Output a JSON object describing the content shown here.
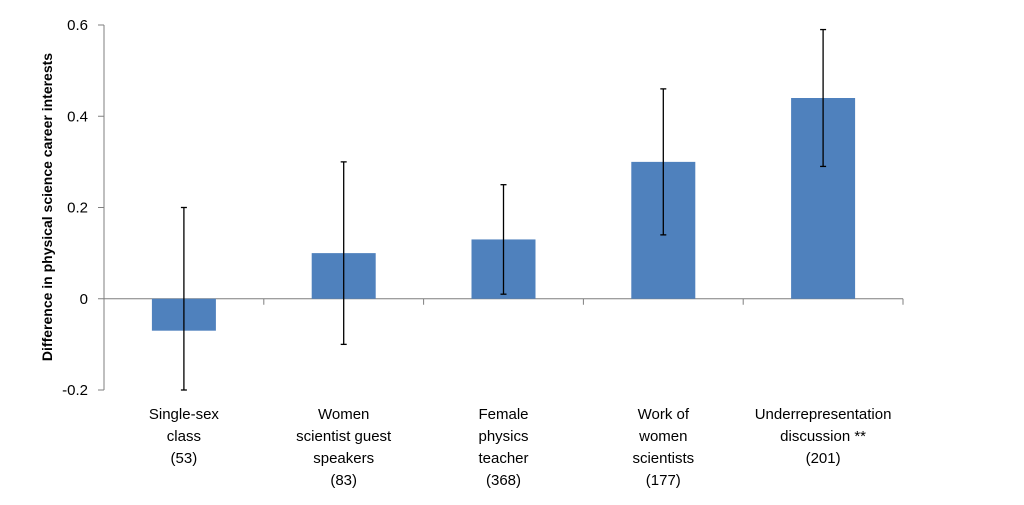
{
  "chart_data": {
    "type": "bar",
    "title": "",
    "xlabel": "",
    "ylabel": "Difference in physical science career interests",
    "ylim": [
      -0.2,
      0.6
    ],
    "yticks": [
      -0.2,
      0,
      0.2,
      0.4,
      0.6
    ],
    "ytick_labels": [
      "-0.2",
      "0",
      "0.2",
      "0.4",
      "0.6"
    ],
    "grid": false,
    "legend": "none",
    "color": "#4F81BD",
    "categories": [
      [
        "Single-sex",
        "class",
        "(53)"
      ],
      [
        "Women",
        "scientist  guest",
        "speakers",
        "(83)"
      ],
      [
        "Female",
        "physics",
        "teacher",
        "(368)"
      ],
      [
        "Work of",
        "women",
        "scientists",
        "(177)"
      ],
      [
        "Underrepresentation",
        "discussion **",
        "(201)"
      ]
    ],
    "values": [
      -0.07,
      0.1,
      0.13,
      0.3,
      0.44
    ],
    "error_low": [
      -0.2,
      -0.1,
      0.01,
      0.14,
      0.29
    ],
    "error_high": [
      0.2,
      0.3,
      0.25,
      0.46,
      0.59
    ]
  }
}
